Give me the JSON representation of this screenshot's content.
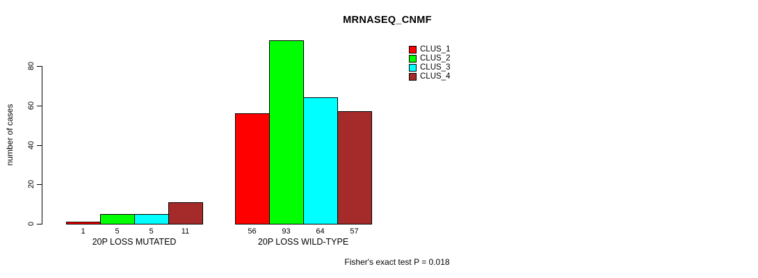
{
  "title": "MRNASEQ_CNMF",
  "ylabel": "number of cases",
  "footer": "Fisher's exact test P = 0.018",
  "legend": [
    {
      "label": "CLUS_1",
      "color": "#ff0000"
    },
    {
      "label": "CLUS_2",
      "color": "#00ff00"
    },
    {
      "label": "CLUS_3",
      "color": "#00ffff"
    },
    {
      "label": "CLUS_4",
      "color": "#a52a2a"
    }
  ],
  "chart_data": {
    "type": "bar",
    "title": "MRNASEQ_CNMF",
    "categories": [
      "20P LOSS MUTATED",
      "20P LOSS WILD-TYPE"
    ],
    "series": [
      {
        "name": "CLUS_1",
        "color": "#ff0000",
        "values": [
          1,
          56
        ]
      },
      {
        "name": "CLUS_2",
        "color": "#00ff00",
        "values": [
          5,
          93
        ]
      },
      {
        "name": "CLUS_3",
        "color": "#00ffff",
        "values": [
          5,
          64
        ]
      },
      {
        "name": "CLUS_4",
        "color": "#a52a2a",
        "values": [
          11,
          57
        ]
      }
    ],
    "bar_value_labels": [
      [
        1,
        5,
        5,
        11
      ],
      [
        56,
        93,
        64,
        57
      ]
    ],
    "ylabel": "number of cases",
    "xlabel": "",
    "yticks": [
      0,
      20,
      40,
      60,
      80
    ],
    "ylim": [
      0,
      93
    ],
    "grid": false,
    "legend_position": "top-right",
    "annotation": "Fisher's exact test P = 0.018"
  }
}
